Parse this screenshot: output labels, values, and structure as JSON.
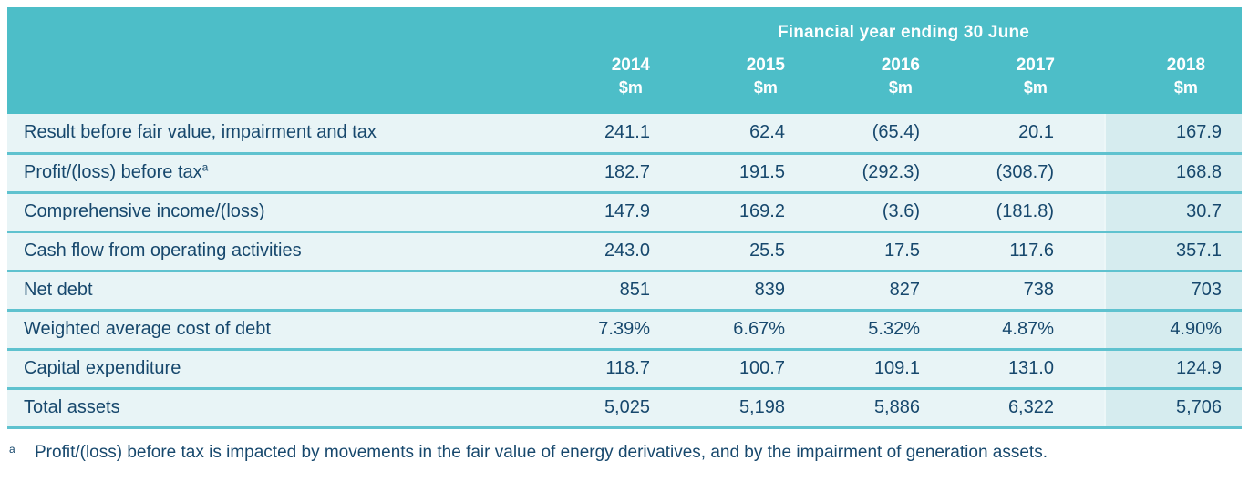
{
  "table": {
    "header": {
      "title": "Financial year ending 30 June",
      "columns": [
        {
          "year": "2014",
          "unit": "$m"
        },
        {
          "year": "2015",
          "unit": "$m"
        },
        {
          "year": "2016",
          "unit": "$m"
        },
        {
          "year": "2017",
          "unit": "$m"
        },
        {
          "year": "2018",
          "unit": "$m"
        }
      ]
    },
    "rows": [
      {
        "label": "Result before fair value, impairment and tax",
        "values": [
          "241.1",
          "62.4",
          "(65.4)",
          "20.1",
          "167.9"
        ]
      },
      {
        "label": "Profit/(loss) before tax",
        "label_superscript": "a",
        "values": [
          "182.7",
          "191.5",
          "(292.3)",
          "(308.7)",
          "168.8"
        ]
      },
      {
        "label": "Comprehensive income/(loss)",
        "values": [
          "147.9",
          "169.2",
          "(3.6)",
          "(181.8)",
          "30.7"
        ]
      },
      {
        "label": "Cash flow from operating activities",
        "values": [
          "243.0",
          "25.5",
          "17.5",
          "117.6",
          "357.1"
        ]
      },
      {
        "label": "Net debt",
        "values": [
          "851",
          "839",
          "827",
          "738",
          "703"
        ]
      },
      {
        "label": "Weighted average cost of debt",
        "values": [
          "7.39%",
          "6.67%",
          "5.32%",
          "4.87%",
          "4.90%"
        ]
      },
      {
        "label": "Capital expenditure",
        "values": [
          "118.7",
          "100.7",
          "109.1",
          "131.0",
          "124.9"
        ]
      },
      {
        "label": "Total assets",
        "values": [
          "5,025",
          "5,198",
          "5,886",
          "6,322",
          "5,706"
        ]
      }
    ]
  },
  "footnote": {
    "marker": "a",
    "text": "Profit/(loss) before tax is impacted by movements in the fair value of energy derivatives, and by the impairment of generation assets."
  },
  "colors": {
    "header_teal": "#4DBEC8",
    "row_bg": "#E8F4F6",
    "highlight_bg": "#D6ECEF",
    "divider_teal": "#5FC2CF",
    "text_navy": "#17486D",
    "header_text": "#FFFFFF"
  }
}
